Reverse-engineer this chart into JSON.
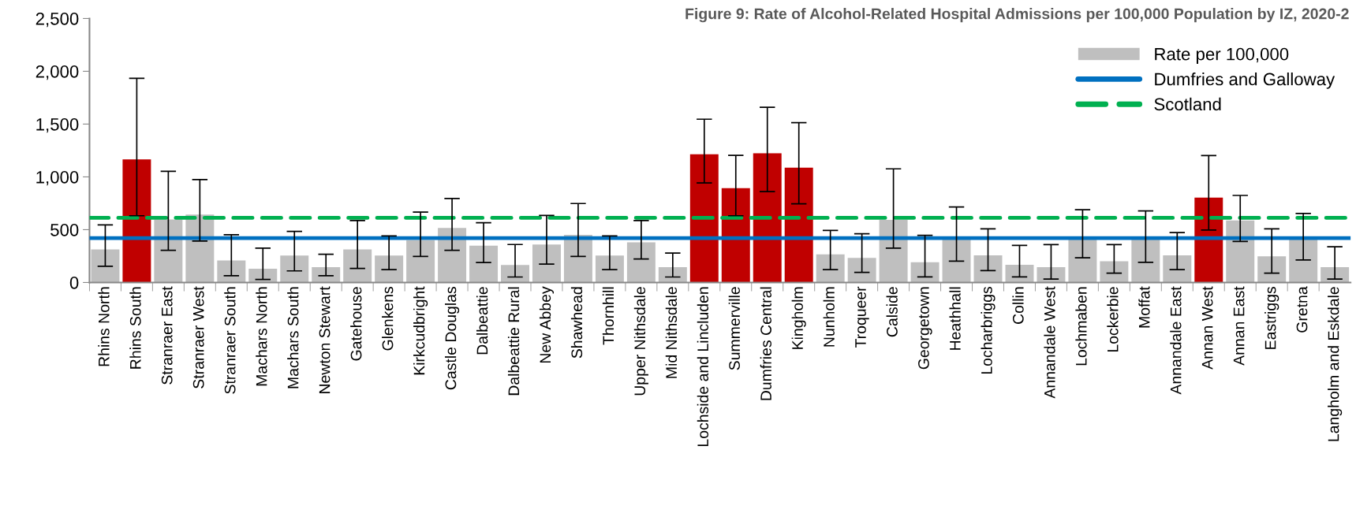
{
  "chart_data": {
    "type": "bar",
    "title": "Figure 9: Rate of Alcohol-Related Hospital Admissions per 100,000 Population by IZ, 2020-2",
    "categories": [
      "Rhins North",
      "Rhins South",
      "Stranraer East",
      "Stranraer West",
      "Stranraer South",
      "Machars North",
      "Machars South",
      "Newton Stewart",
      "Gatehouse",
      "Glenkens",
      "Kirkcudbright",
      "Castle Douglas",
      "Dalbeattie",
      "Dalbeattie Rural",
      "New Abbey",
      "Shawhead",
      "Thornhill",
      "Upper Nithsdale",
      "Mid Nithsdale",
      "Lochside and Lincluden",
      "Summerville",
      "Dumfries Central",
      "Kingholm",
      "Nunholm",
      "Troqueer",
      "Calside",
      "Georgetown",
      "Heathhall",
      "Locharbriggs",
      "Collin",
      "Annandale West",
      "Lochmaben",
      "Lockerbie",
      "Moffat",
      "Annandale East",
      "Annan West",
      "Annan East",
      "Eastriggs",
      "Gretna",
      "Langholm and Eskdale"
    ],
    "series": [
      {
        "name": "Rate per 100,000",
        "values": [
          313,
          1166,
          597,
          644,
          209,
          131,
          255,
          145,
          313,
          255,
          400,
          516,
          348,
          165,
          360,
          452,
          255,
          380,
          145,
          1215,
          893,
          1224,
          1088,
          267,
          232,
          592,
          191,
          412,
          258,
          168,
          146,
          412,
          202,
          412,
          258,
          803,
          588,
          247,
          412,
          146
        ],
        "colors": [
          "#bfbfbf",
          "#c00000",
          "#bfbfbf",
          "#bfbfbf",
          "#bfbfbf",
          "#bfbfbf",
          "#bfbfbf",
          "#bfbfbf",
          "#bfbfbf",
          "#bfbfbf",
          "#bfbfbf",
          "#bfbfbf",
          "#bfbfbf",
          "#bfbfbf",
          "#bfbfbf",
          "#bfbfbf",
          "#bfbfbf",
          "#bfbfbf",
          "#bfbfbf",
          "#c00000",
          "#c00000",
          "#c00000",
          "#c00000",
          "#bfbfbf",
          "#bfbfbf",
          "#bfbfbf",
          "#bfbfbf",
          "#bfbfbf",
          "#bfbfbf",
          "#bfbfbf",
          "#bfbfbf",
          "#bfbfbf",
          "#bfbfbf",
          "#bfbfbf",
          "#bfbfbf",
          "#c00000",
          "#bfbfbf",
          "#bfbfbf",
          "#bfbfbf",
          "#bfbfbf"
        ],
        "color": "#bfbfbf",
        "errors": [
          [
            154,
            545
          ],
          [
            632,
            1934
          ],
          [
            305,
            1053
          ],
          [
            392,
            975
          ],
          [
            64,
            452
          ],
          [
            29,
            325
          ],
          [
            110,
            484
          ],
          [
            64,
            267
          ],
          [
            133,
            586
          ],
          [
            122,
            441
          ],
          [
            247,
            667
          ],
          [
            305,
            795
          ],
          [
            189,
            566
          ],
          [
            52,
            360
          ],
          [
            174,
            635
          ],
          [
            247,
            748
          ],
          [
            122,
            441
          ],
          [
            223,
            586
          ],
          [
            52,
            278
          ],
          [
            943,
            1546
          ],
          [
            632,
            1204
          ],
          [
            861,
            1659
          ],
          [
            745,
            1514
          ],
          [
            122,
            493
          ],
          [
            96,
            461
          ],
          [
            325,
            1076
          ],
          [
            53,
            447
          ],
          [
            202,
            715
          ],
          [
            112,
            508
          ],
          [
            53,
            351
          ],
          [
            32,
            359
          ],
          [
            234,
            689
          ],
          [
            88,
            359
          ],
          [
            191,
            678
          ],
          [
            122,
            473
          ],
          [
            497,
            1202
          ],
          [
            388,
            824
          ],
          [
            88,
            508
          ],
          [
            213,
            654
          ],
          [
            32,
            338
          ]
        ]
      }
    ],
    "ref_lines": [
      {
        "axis": "y",
        "value": 420,
        "label": "Dumfries and Galloway",
        "color": "#0070c0",
        "line_style": "solid"
      },
      {
        "axis": "y",
        "value": 612,
        "label": "Scotland",
        "color": "#00b050",
        "line_style": "dashed"
      }
    ],
    "ylim": [
      0,
      2500
    ],
    "yticks": [
      0,
      500,
      {
        "value": 1000,
        "label": "1,000"
      },
      {
        "value": 1500,
        "label": "1,500"
      },
      {
        "value": 2000,
        "label": "2,000"
      },
      {
        "value": 2500,
        "label": "2,500"
      }
    ],
    "grid": false,
    "legend": "top right"
  }
}
